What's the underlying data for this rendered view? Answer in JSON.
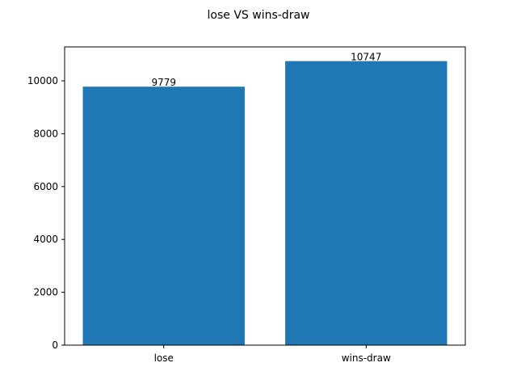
{
  "chart_data": {
    "type": "bar",
    "title": "lose VS wins-draw",
    "categories": [
      "lose",
      "wins-draw"
    ],
    "values": [
      9779,
      10747
    ],
    "value_labels": [
      "9779",
      "10747"
    ],
    "xlabel": "",
    "ylabel": "",
    "ylim": [
      0,
      11285
    ],
    "yticks": [
      0,
      2000,
      4000,
      6000,
      8000,
      10000
    ],
    "ytick_labels": [
      "0",
      "2000",
      "4000",
      "6000",
      "8000",
      "10000"
    ],
    "grid": false,
    "legend": "none",
    "bar_color": "#1f77b4"
  }
}
